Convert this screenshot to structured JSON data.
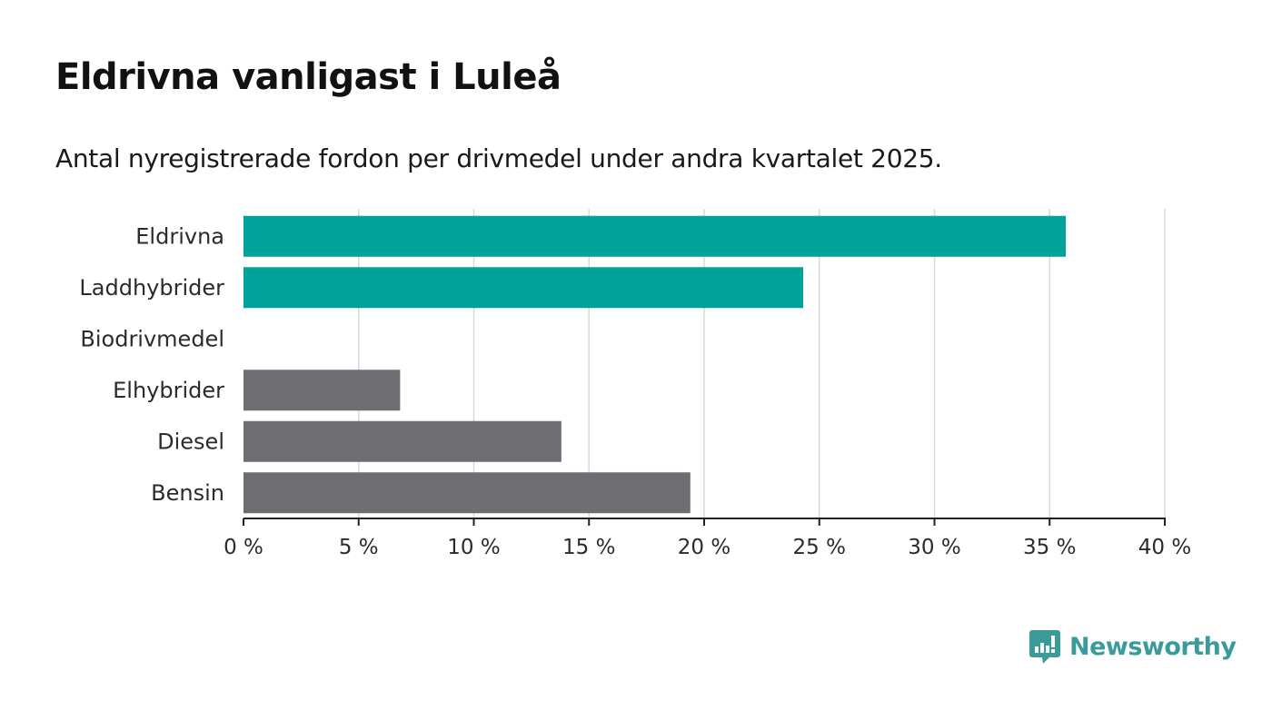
{
  "title": "Eldrivna vanligast i Luleå",
  "subtitle": "Antal nyregistrerade fordon per drivmedel under andra kvartalet 2025.",
  "brand": "Newsworthy",
  "colors": {
    "highlight": "#00a39a",
    "muted": "#6e6d72",
    "axis": "#222222",
    "grid": "#d9d9d9",
    "brand": "#3a9c9a"
  },
  "chart_data": {
    "type": "bar",
    "orientation": "horizontal",
    "categories": [
      "Eldrivna",
      "Laddhybrider",
      "Biodrivmedel",
      "Elhybrider",
      "Diesel",
      "Bensin"
    ],
    "values": [
      35.7,
      24.3,
      0,
      6.8,
      13.8,
      19.4
    ],
    "bar_colors": [
      "#00a39a",
      "#00a39a",
      "#6e6d72",
      "#6e6d72",
      "#6e6d72",
      "#6e6d72"
    ],
    "xlim": [
      0,
      40
    ],
    "xticks": [
      0,
      5,
      10,
      15,
      20,
      25,
      30,
      35,
      40
    ],
    "xtick_labels": [
      "0 %",
      "5 %",
      "10 %",
      "15 %",
      "20 %",
      "25 %",
      "30 %",
      "35 %",
      "40 %"
    ],
    "title": "Eldrivna vanligast i Luleå",
    "xlabel": "",
    "ylabel": "",
    "grid": true,
    "legend": "none"
  }
}
